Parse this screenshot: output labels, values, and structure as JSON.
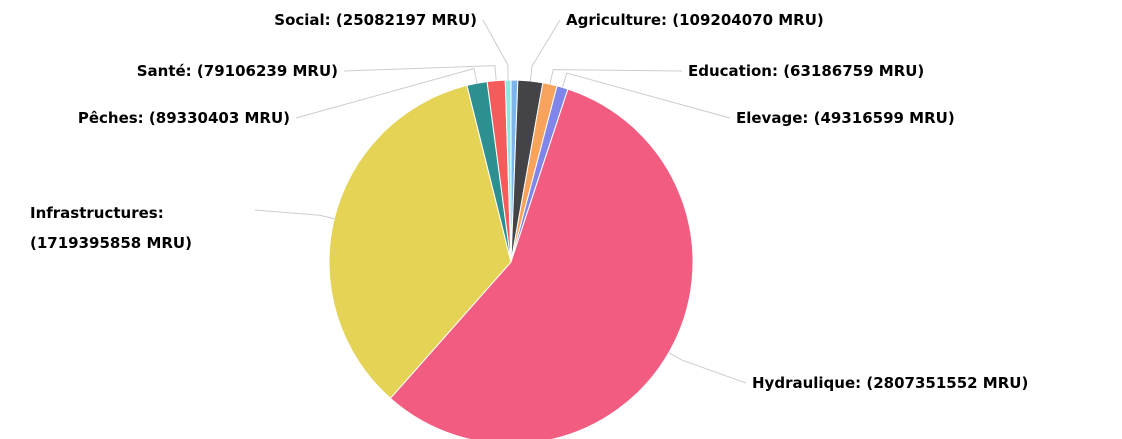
{
  "chart_data": {
    "type": "pie",
    "categories": [
      null,
      "Agriculture",
      "Education",
      "Elevage",
      "Hydraulique",
      "Infrastructures",
      "Pêches",
      "Santé",
      "Social"
    ],
    "values": [
      30000000,
      109204070,
      63186759,
      49316599,
      2807351552,
      1719395858,
      89330403,
      79106239,
      25082197
    ],
    "value_labels": [
      null,
      "Agriculture: (109204070 MRU)",
      "Education: (63186759 MRU)",
      "Elevage: (49316599 MRU)",
      "Hydraulique: (2807351552 MRU)",
      "Infrastructures: (1719395858 MRU)",
      "Pêches: (89330403 MRU)",
      "Santé: (79106239 MRU)",
      "Social: (25082197 MRU)"
    ],
    "colors": [
      "#7cb5ec",
      "#434348",
      "#f7a35c",
      "#8085e9",
      "#f15c80",
      "#e4d354",
      "#2b908f",
      "#f45b5b",
      "#91e8e1"
    ]
  }
}
